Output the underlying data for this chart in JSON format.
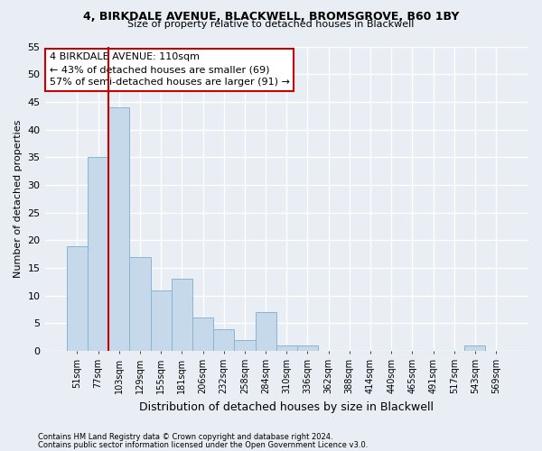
{
  "title1": "4, BIRKDALE AVENUE, BLACKWELL, BROMSGROVE, B60 1BY",
  "title2": "Size of property relative to detached houses in Blackwell",
  "xlabel": "Distribution of detached houses by size in Blackwell",
  "ylabel": "Number of detached properties",
  "footnote1": "Contains HM Land Registry data © Crown copyright and database right 2024.",
  "footnote2": "Contains public sector information licensed under the Open Government Licence v3.0.",
  "bin_labels": [
    "51sqm",
    "77sqm",
    "103sqm",
    "129sqm",
    "155sqm",
    "181sqm",
    "206sqm",
    "232sqm",
    "258sqm",
    "284sqm",
    "310sqm",
    "336sqm",
    "362sqm",
    "388sqm",
    "414sqm",
    "440sqm",
    "465sqm",
    "491sqm",
    "517sqm",
    "543sqm",
    "569sqm"
  ],
  "bar_values": [
    19,
    35,
    44,
    17,
    11,
    13,
    6,
    4,
    2,
    7,
    1,
    1,
    0,
    0,
    0,
    0,
    0,
    0,
    0,
    1,
    0
  ],
  "bar_color": "#c6d9ea",
  "bar_edge_color": "#8ab4d0",
  "vline_x_index": 2,
  "vline_color": "#cc0000",
  "ylim": [
    0,
    55
  ],
  "yticks": [
    0,
    5,
    10,
    15,
    20,
    25,
    30,
    35,
    40,
    45,
    50,
    55
  ],
  "annotation_text": "4 BIRKDALE AVENUE: 110sqm\n← 43% of detached houses are smaller (69)\n57% of semi-detached houses are larger (91) →",
  "annotation_box_color": "#ffffff",
  "annotation_box_edge": "#cc0000",
  "background_color": "#e8eef4",
  "grid_color": "#ffffff"
}
